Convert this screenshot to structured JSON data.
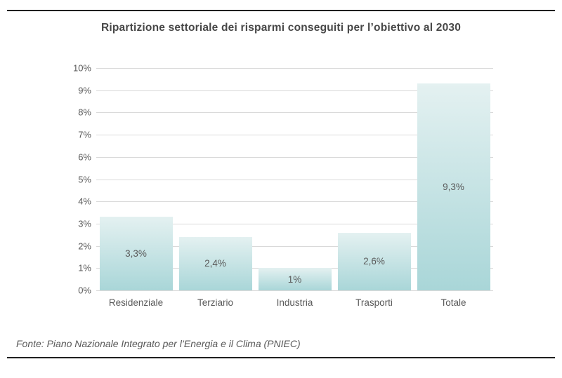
{
  "header": {
    "title": "Ripartizione settoriale dei risparmi conseguiti per l’obiettivo al 2030"
  },
  "footer": {
    "source": "Fonte: Piano Nazionale Integrato per l’Energia e il Clima (PNIEC)"
  },
  "colors": {
    "background": "#ffffff",
    "rule": "#1f1f1f",
    "title_text": "#474747",
    "axis_text": "#595959",
    "gridline": "#d9d9d9",
    "bar_gradient_top": "#e4f1f1",
    "bar_gradient_bottom": "#a9d6d8"
  },
  "chart_data": {
    "type": "bar",
    "title": "Ripartizione settoriale dei risparmi conseguiti per l’obiettivo al 2030",
    "categories": [
      "Residenziale",
      "Terziario",
      "Industria",
      "Trasporti",
      "Totale"
    ],
    "values": [
      3.3,
      2.4,
      1,
      2.6,
      9.3
    ],
    "value_labels": [
      "3,3%",
      "2,4%",
      "1%",
      "2,6%",
      "9,3%"
    ],
    "xlabel": "",
    "ylabel": "",
    "ylim": [
      0,
      10
    ],
    "yticks": [
      0,
      1,
      2,
      3,
      4,
      5,
      6,
      7,
      8,
      9,
      10
    ],
    "ytick_labels": [
      "0%",
      "1%",
      "2%",
      "3%",
      "4%",
      "5%",
      "6%",
      "7%",
      "8%",
      "9%",
      "10%"
    ],
    "grid": "horizontal",
    "legend": "none",
    "bar_label_position": "inside-center"
  }
}
